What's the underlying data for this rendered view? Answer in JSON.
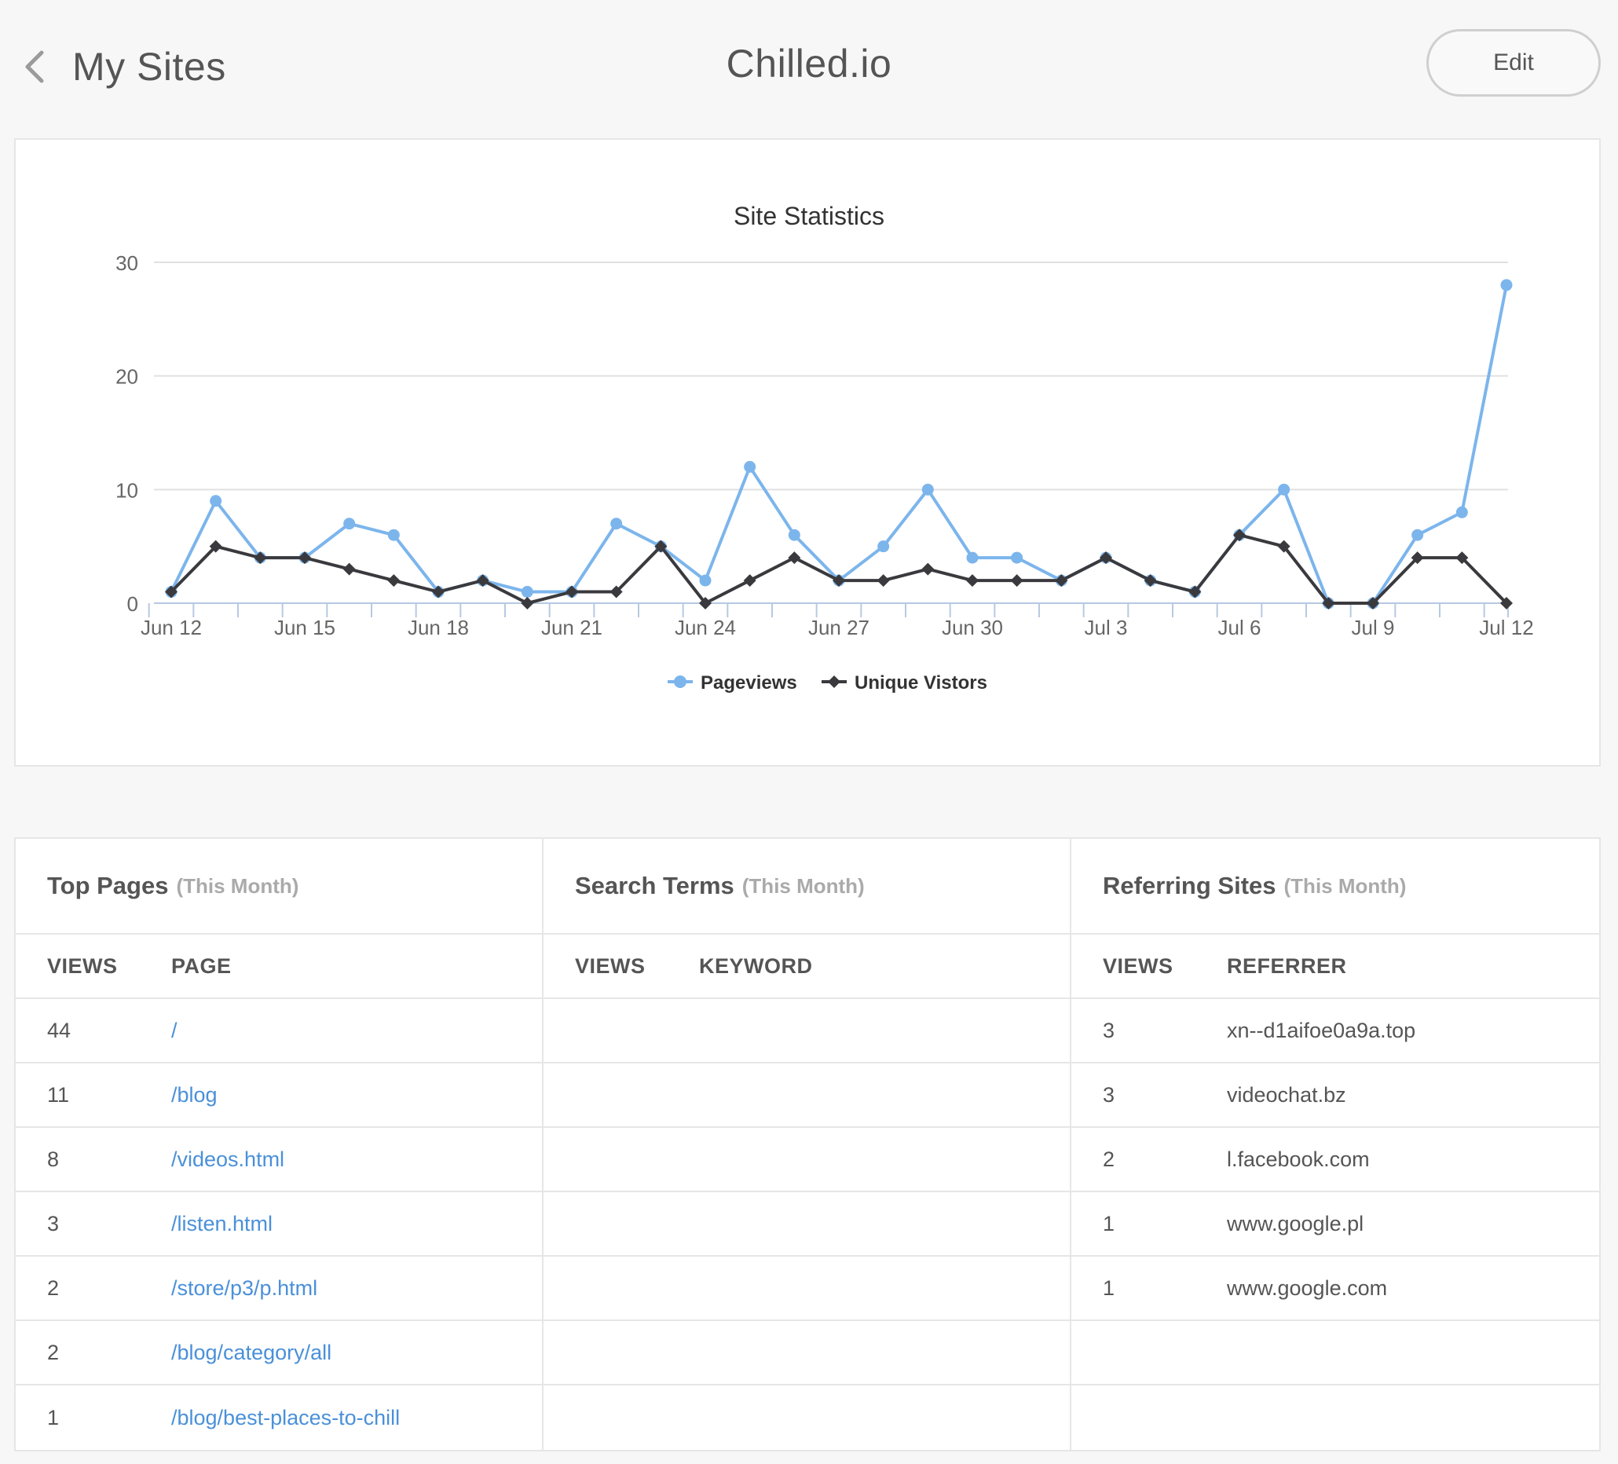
{
  "header": {
    "back_label": "My Sites",
    "title": "Chilled.io",
    "edit_label": "Edit"
  },
  "colors": {
    "pageviews": "#7cb5ec",
    "visitors": "#3a3a3e",
    "link": "#4a90d9"
  },
  "chart_data": {
    "type": "line",
    "title": "Site Statistics",
    "xlabel": "",
    "ylabel": "",
    "ylim": [
      0,
      30
    ],
    "y_ticks": [
      0,
      10,
      20,
      30
    ],
    "x": [
      "Jun 12",
      "Jun 13",
      "Jun 14",
      "Jun 15",
      "Jun 16",
      "Jun 17",
      "Jun 18",
      "Jun 19",
      "Jun 20",
      "Jun 21",
      "Jun 22",
      "Jun 23",
      "Jun 24",
      "Jun 25",
      "Jun 26",
      "Jun 27",
      "Jun 28",
      "Jun 29",
      "Jun 30",
      "Jul 1",
      "Jul 2",
      "Jul 3",
      "Jul 4",
      "Jul 5",
      "Jul 6",
      "Jul 7",
      "Jul 8",
      "Jul 9",
      "Jul 10",
      "Jul 11",
      "Jul 12"
    ],
    "x_tick_labels": [
      "Jun 12",
      "Jun 15",
      "Jun 18",
      "Jun 21",
      "Jun 24",
      "Jun 27",
      "Jun 30",
      "Jul 3",
      "Jul 6",
      "Jul 9",
      "Jul 12"
    ],
    "grid": true,
    "legend_position": "bottom-center",
    "series": [
      {
        "name": "Pageviews",
        "values": [
          1,
          9,
          4,
          4,
          7,
          6,
          1,
          2,
          1,
          1,
          7,
          5,
          2,
          12,
          6,
          2,
          5,
          10,
          4,
          4,
          2,
          4,
          2,
          1,
          6,
          10,
          0,
          0,
          6,
          8,
          28
        ]
      },
      {
        "name": "Unique Vistors",
        "values": [
          1,
          5,
          4,
          4,
          3,
          2,
          1,
          2,
          0,
          1,
          1,
          5,
          0,
          2,
          4,
          2,
          2,
          3,
          2,
          2,
          2,
          4,
          2,
          1,
          6,
          5,
          0,
          0,
          4,
          4,
          0
        ]
      }
    ]
  },
  "top_pages": {
    "title": "Top Pages",
    "subtitle": "(This Month)",
    "col_views": "VIEWS",
    "col_page": "PAGE",
    "rows": [
      {
        "views": "44",
        "page": "/"
      },
      {
        "views": "11",
        "page": "/blog"
      },
      {
        "views": "8",
        "page": "/videos.html"
      },
      {
        "views": "3",
        "page": "/listen.html"
      },
      {
        "views": "2",
        "page": "/store/p3/p.html"
      },
      {
        "views": "2",
        "page": "/blog/category/all"
      },
      {
        "views": "1",
        "page": "/blog/best-places-to-chill"
      }
    ]
  },
  "search_terms": {
    "title": "Search Terms",
    "subtitle": "(This Month)",
    "col_views": "VIEWS",
    "col_keyword": "KEYWORD",
    "rows": []
  },
  "referring_sites": {
    "title": "Referring Sites",
    "subtitle": "(This Month)",
    "col_views": "VIEWS",
    "col_referrer": "REFERRER",
    "rows": [
      {
        "views": "3",
        "referrer": "xn--d1aifoe0a9a.top"
      },
      {
        "views": "3",
        "referrer": "videochat.bz"
      },
      {
        "views": "2",
        "referrer": "l.facebook.com"
      },
      {
        "views": "1",
        "referrer": "www.google.pl"
      },
      {
        "views": "1",
        "referrer": "www.google.com"
      }
    ]
  }
}
